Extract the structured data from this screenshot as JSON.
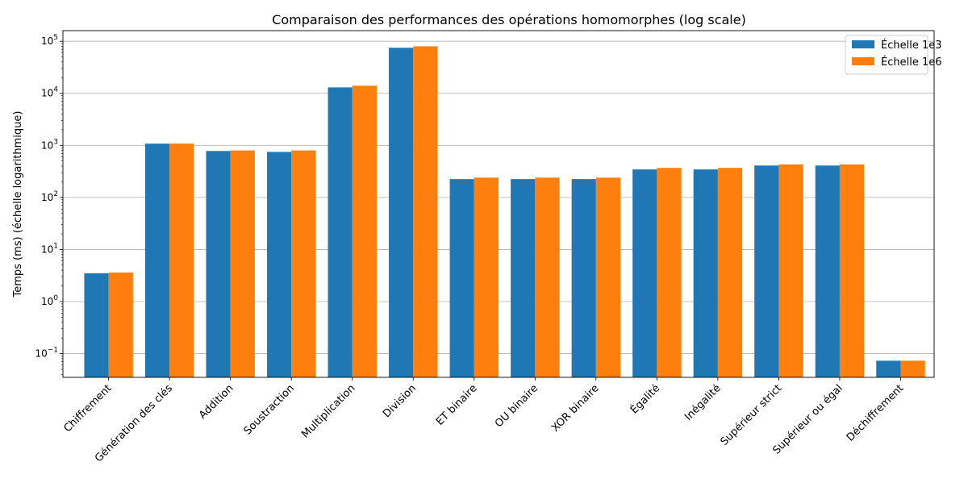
{
  "chart_data": {
    "type": "bar",
    "title": "Comparaison des performances des opérations homomorphes (log scale)",
    "xlabel": "",
    "ylabel": "Temps (ms) (échelle logarithmique)",
    "yscale": "log",
    "ylim": [
      0.035,
      160000
    ],
    "yticks": [
      {
        "value": 0.1,
        "base": "10",
        "exp": "−1"
      },
      {
        "value": 1,
        "base": "10",
        "exp": "0"
      },
      {
        "value": 10,
        "base": "10",
        "exp": "1"
      },
      {
        "value": 100,
        "base": "10",
        "exp": "2"
      },
      {
        "value": 1000,
        "base": "10",
        "exp": "3"
      },
      {
        "value": 10000,
        "base": "10",
        "exp": "4"
      },
      {
        "value": 100000,
        "base": "10",
        "exp": "5"
      }
    ],
    "grid": "horizontal",
    "legend_position": "top-right",
    "categories": [
      "Chiffrement",
      "Génération des clés",
      "Addition",
      "Soustraction",
      "Multiplication",
      "Division",
      "ET binaire",
      "OU binaire",
      "XOR binaire",
      "Égalité",
      "Inégalité",
      "Supérieur strict",
      "Supérieur ou égal",
      "Déchiffrement"
    ],
    "series": [
      {
        "name": "Échelle 1e3",
        "color": "#1f77b4",
        "values": [
          3.5,
          1080,
          780,
          750,
          13000,
          75000,
          225,
          225,
          225,
          345,
          345,
          410,
          410,
          0.073
        ]
      },
      {
        "name": "Échelle 1e6",
        "color": "#ff7f0e",
        "values": [
          3.6,
          1080,
          800,
          800,
          14000,
          80000,
          240,
          240,
          240,
          370,
          370,
          430,
          430,
          0.073
        ]
      }
    ]
  }
}
